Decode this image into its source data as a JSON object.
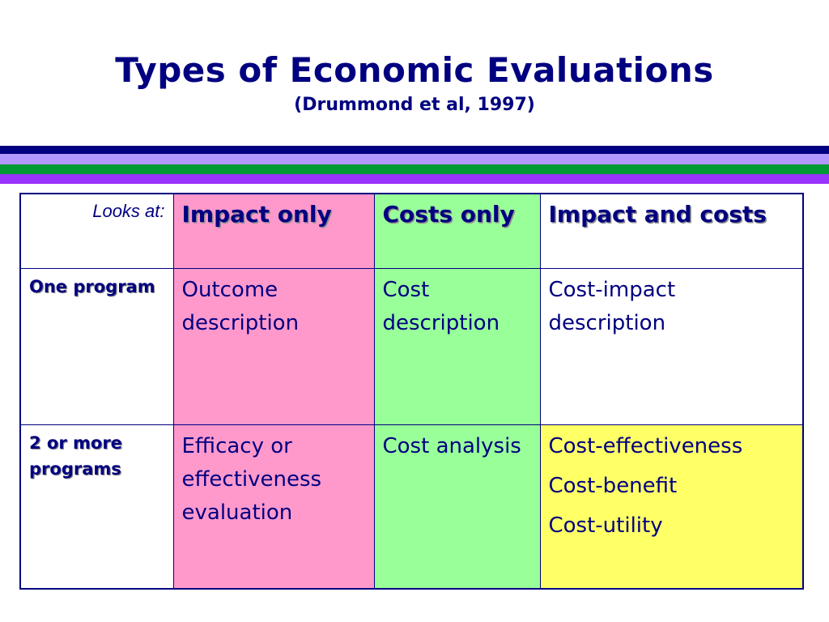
{
  "title": "Types of Economic Evaluations",
  "subtitle": "(Drummond et al, 1997)",
  "colors": {
    "navy": "#000080",
    "pink": "#FF99CC",
    "green": "#99FF99",
    "yellow": "#FFFF66",
    "stripe_navy": "#000080",
    "stripe_lavender": "#B399FF",
    "stripe_green": "#009933",
    "stripe_violet": "#9933FF"
  },
  "table": {
    "corner_label": "Looks at:",
    "headers": {
      "impact_only": "Impact only",
      "costs_only": "Costs only",
      "impact_and_costs": "Impact and costs"
    },
    "rows": {
      "one_program": {
        "label": "One program",
        "impact_only": "Outcome description",
        "costs_only": "Cost description",
        "impact_and_costs": "Cost-impact description"
      },
      "two_or_more": {
        "label": "2 or more programs",
        "impact_only": "Efficacy or effectiveness evaluation",
        "costs_only": "Cost analysis",
        "impact_and_costs": [
          "Cost-effectiveness",
          "Cost-benefit",
          "Cost-utility"
        ]
      }
    }
  }
}
